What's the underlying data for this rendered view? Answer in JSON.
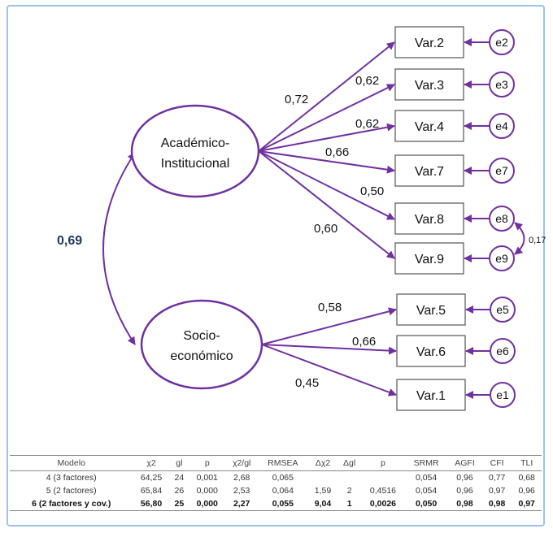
{
  "colors": {
    "purple": "#7030a0",
    "frame": "#9dc3e6",
    "latent_corr": "#1f3864"
  },
  "latents": [
    {
      "id": "academico",
      "lines": [
        "Académico-",
        "Institucional"
      ]
    },
    {
      "id": "socio",
      "lines": [
        "Socio-",
        "económico"
      ]
    }
  ],
  "latent_correlation": "0,69",
  "observed": [
    {
      "label": "Var.2",
      "error": "e2",
      "loading": "0,72",
      "factor": "academico"
    },
    {
      "label": "Var.3",
      "error": "e3",
      "loading": "0,62",
      "factor": "academico"
    },
    {
      "label": "Var.4",
      "error": "e4",
      "loading": "0,62",
      "factor": "academico"
    },
    {
      "label": "Var.7",
      "error": "e7",
      "loading": "0,66",
      "factor": "academico"
    },
    {
      "label": "Var.8",
      "error": "e8",
      "loading": "0,50",
      "factor": "academico"
    },
    {
      "label": "Var.9",
      "error": "e9",
      "loading": "0,60",
      "factor": "academico"
    },
    {
      "label": "Var.5",
      "error": "e5",
      "loading": "0,58",
      "factor": "socio"
    },
    {
      "label": "Var.6",
      "error": "e6",
      "loading": "0,66",
      "factor": "socio"
    },
    {
      "label": "Var.1",
      "error": "e1",
      "loading": "0,45",
      "factor": "socio"
    }
  ],
  "error_covariance": {
    "between": [
      "e8",
      "e9"
    ],
    "value": "0,17"
  },
  "table": {
    "headers": [
      "Modelo",
      "χ2",
      "gl",
      "p",
      "χ2/gl",
      "RMSEA",
      "Δχ2",
      "Δgl",
      "p",
      "SRMR",
      "AGFI",
      "CFI",
      "TLI"
    ],
    "rows": [
      [
        "4 (3 factores)",
        "64,25",
        "24",
        "0,001",
        "2,68",
        "0,065",
        "",
        "",
        "",
        "0,054",
        "0,96",
        "0,77",
        "0,68"
      ],
      [
        "5 (2 factores)",
        "65,84",
        "26",
        "0,000",
        "2,53",
        "0,064",
        "1,59",
        "2",
        "0,4516",
        "0,054",
        "0,96",
        "0,97",
        "0,96"
      ],
      [
        "6 (2 factores y cov.)",
        "56,80",
        "25",
        "0,000",
        "2,27",
        "0,055",
        "9,04",
        "1",
        "0,0026",
        "0,050",
        "0,98",
        "0,98",
        "0,97"
      ]
    ]
  }
}
